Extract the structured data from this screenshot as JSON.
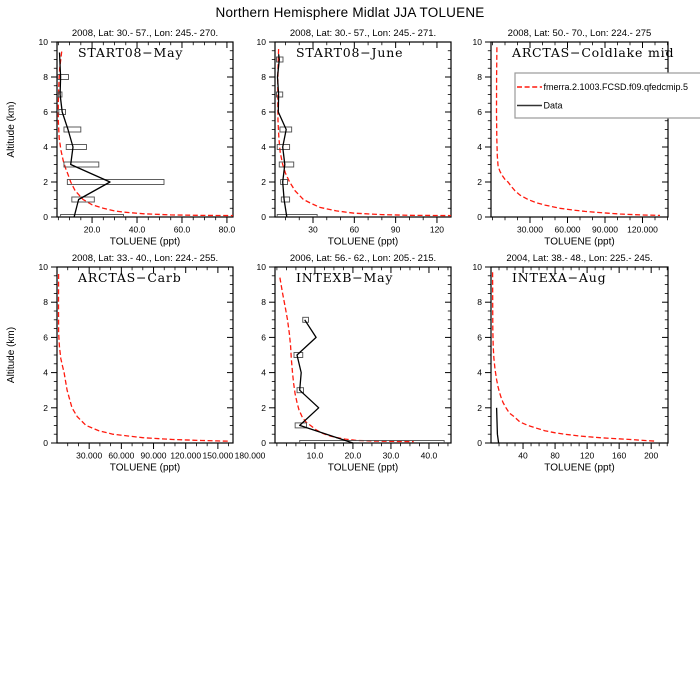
{
  "title": "Northern Hemisphere Midlat JJA TOLUENE",
  "colors": {
    "model": "#ff1a0e",
    "data": "#000000",
    "error_box": "#4d4d4d",
    "axis": "#000000",
    "legend_box": "#9a9a9a"
  },
  "legend": {
    "entries": [
      {
        "name": "model-line",
        "label": "fmerra.2.1003.FCSD.f09.qfedcmip.5",
        "color": "#ff1a0e",
        "dashed": true
      },
      {
        "name": "data-line",
        "label": "Data",
        "color": "#333333",
        "dashed": false
      }
    ]
  },
  "chart_data": [
    {
      "type": "line",
      "header": "2008, Lat: 30.- 57., Lon: 245.- 270.",
      "label": "START08−May",
      "xlabel": "TOLUENE (ppt)",
      "ylabel": "Altitude (km)",
      "xlim": [
        4.4,
        82.7
      ],
      "ylim": [
        0,
        10
      ],
      "x_ticks": {
        "values": [
          20,
          40,
          60,
          80
        ],
        "labels": [
          "20.0",
          "40.0",
          "60.0",
          "80.0"
        ],
        "minor_step": 5
      },
      "y_ticks": {
        "values": [
          0,
          2,
          4,
          6,
          8,
          10
        ],
        "labels": [
          "0",
          "2",
          "4",
          "6",
          "8",
          "10"
        ],
        "minor_step": 0.5
      },
      "model": [
        [
          6.5,
          9.45
        ],
        [
          5.6,
          8.5
        ],
        [
          5.2,
          7.5
        ],
        [
          5.0,
          6.5
        ],
        [
          5.0,
          5.5
        ],
        [
          5.4,
          4.5
        ],
        [
          6.2,
          3.8
        ],
        [
          7.2,
          3.2
        ],
        [
          8.2,
          2.8
        ],
        [
          9.4,
          2.4
        ],
        [
          10.5,
          2.0
        ],
        [
          12.5,
          1.5
        ],
        [
          16,
          1.0
        ],
        [
          20,
          0.7
        ],
        [
          25,
          0.5
        ],
        [
          30,
          0.35
        ],
        [
          34,
          0.28
        ],
        [
          43,
          0.18
        ],
        [
          55,
          0.12
        ],
        [
          70,
          0.09
        ],
        [
          83,
          0.08
        ]
      ],
      "data": [
        {
          "alt": 0,
          "v": 12,
          "lo": 6,
          "hi": 34
        },
        {
          "alt": 1,
          "v": 14,
          "lo": 11,
          "hi": 21
        },
        {
          "alt": 2,
          "v": 28,
          "lo": 9,
          "hi": 52
        },
        {
          "alt": 3,
          "v": 10.5,
          "lo": 7.5,
          "hi": 23
        },
        {
          "alt": 4,
          "v": 11.5,
          "lo": 8.5,
          "hi": 17.5
        },
        {
          "alt": 5,
          "v": 9.3,
          "lo": 7.5,
          "hi": 15
        },
        {
          "alt": 6,
          "v": 6.7,
          "lo": 5.2,
          "hi": 8.2
        },
        {
          "alt": 7,
          "v": 5.8,
          "lo": 5,
          "hi": 6.6
        },
        {
          "alt": 8,
          "v": 6,
          "lo": 4.7,
          "hi": 9.5
        },
        {
          "alt": 9.4,
          "v": 5.5
        }
      ]
    },
    {
      "type": "line",
      "header": "2008, Lat: 30.- 57., Lon: 245.- 271.",
      "label": "START08−June",
      "xlabel": "TOLUENE (ppt)",
      "ylabel": "",
      "xlim": [
        2.4,
        130.2
      ],
      "ylim": [
        0,
        10
      ],
      "x_ticks": {
        "values": [
          30,
          60,
          90,
          120
        ],
        "labels": [
          "30",
          "60",
          "90",
          "120"
        ],
        "minor_step": 10
      },
      "y_ticks": {
        "values": [
          0,
          2,
          4,
          6,
          8,
          10
        ],
        "labels": [
          "0",
          "2",
          "4",
          "6",
          "8",
          "10"
        ],
        "minor_step": 0.5
      },
      "model": [
        [
          5,
          9.6
        ],
        [
          4.6,
          8.5
        ],
        [
          4.4,
          7.5
        ],
        [
          4.4,
          6.5
        ],
        [
          4.6,
          5.5
        ],
        [
          5.2,
          4.5
        ],
        [
          6.2,
          3.7
        ],
        [
          8,
          3.0
        ],
        [
          10,
          2.5
        ],
        [
          13,
          2.0
        ],
        [
          17,
          1.5
        ],
        [
          23,
          1.0
        ],
        [
          28,
          0.8
        ],
        [
          35,
          0.55
        ],
        [
          47,
          0.35
        ],
        [
          60,
          0.22
        ],
        [
          80,
          0.14
        ],
        [
          100,
          0.1
        ],
        [
          131,
          0.08
        ]
      ],
      "data": [
        {
          "alt": 0,
          "v": 11,
          "lo": 4,
          "hi": 33
        },
        {
          "alt": 1,
          "v": 9,
          "lo": 7,
          "hi": 13
        },
        {
          "alt": 2,
          "v": 8,
          "lo": 6.5,
          "hi": 11.5
        },
        {
          "alt": 3,
          "v": 9.5,
          "lo": 5.5,
          "hi": 16
        },
        {
          "alt": 4,
          "v": 8,
          "lo": 4,
          "hi": 13
        },
        {
          "alt": 5,
          "v": 10.5,
          "lo": 6,
          "hi": 14.5
        },
        {
          "alt": 6,
          "v": 4.8
        },
        {
          "alt": 7,
          "v": 5,
          "lo": 3.5,
          "hi": 8
        },
        {
          "alt": 8,
          "v": 4.2
        },
        {
          "alt": 9,
          "v": 5.5,
          "lo": 3.5,
          "hi": 8.2
        },
        {
          "alt": 9.3,
          "v": 5
        }
      ]
    },
    {
      "type": "line",
      "header": "2008, Lat: 50.- 70., Lon: 224.- 275",
      "label": "ARCTAS−Coldlake mid",
      "xlabel": "TOLUENE (ppt)",
      "ylabel": "",
      "xlim": [
        -1.2,
        140.4
      ],
      "ylim": [
        0,
        10
      ],
      "x_ticks": {
        "values": [
          30,
          60,
          90,
          120
        ],
        "labels": [
          "30.000",
          "60.000",
          "90.000",
          "120.000"
        ],
        "minor_step": 10
      },
      "y_ticks": {
        "values": [
          0,
          2,
          4,
          6,
          8,
          10
        ],
        "labels": [
          "0",
          "2",
          "4",
          "6",
          "8",
          "10"
        ],
        "minor_step": 0.5
      },
      "has_legend": true,
      "model": [
        [
          3.5,
          9.7
        ],
        [
          3.3,
          8.0
        ],
        [
          3.2,
          6.0
        ],
        [
          3.4,
          4.5
        ],
        [
          3.8,
          3.5
        ],
        [
          4.5,
          2.9
        ],
        [
          6,
          2.6
        ],
        [
          8,
          2.35
        ],
        [
          10.5,
          2.1
        ],
        [
          12.4,
          2.0
        ],
        [
          15,
          1.75
        ],
        [
          18,
          1.5
        ],
        [
          22,
          1.25
        ],
        [
          28.4,
          1.0
        ],
        [
          35,
          0.82
        ],
        [
          42,
          0.68
        ],
        [
          54,
          0.5
        ],
        [
          64,
          0.4
        ],
        [
          74,
          0.32
        ],
        [
          88,
          0.24
        ],
        [
          102,
          0.17
        ],
        [
          118,
          0.12
        ],
        [
          134,
          0.09
        ]
      ],
      "data": []
    },
    {
      "type": "line",
      "header": "2008, Lat: 33.- 40., Lon: 224.- 255.",
      "label": "ARCTAS−Carb",
      "xlabel": "TOLUENE (ppt)",
      "ylabel": "Altitude (km)",
      "xlim": [
        0,
        164.1
      ],
      "ylim": [
        0,
        10
      ],
      "x_ticks": {
        "values": [
          30,
          60,
          90,
          120,
          150,
          180
        ],
        "labels": [
          "30.000",
          "60.000",
          "90.000",
          "120.000",
          "150.000",
          "180.000"
        ],
        "minor_step": 10
      },
      "y_ticks": {
        "values": [
          0,
          2,
          4,
          6,
          8,
          10
        ],
        "labels": [
          "0",
          "2",
          "4",
          "6",
          "8",
          "10"
        ],
        "minor_step": 0.5
      },
      "model": [
        [
          1.5,
          9.6
        ],
        [
          1.4,
          8.0
        ],
        [
          1.5,
          6.3
        ],
        [
          2.2,
          5.5
        ],
        [
          3.5,
          4.8
        ],
        [
          5,
          4.4
        ],
        [
          6.6,
          4.0
        ],
        [
          9.4,
          3.0
        ],
        [
          14,
          2.0
        ],
        [
          18.8,
          1.5
        ],
        [
          27,
          1.0
        ],
        [
          39,
          0.7
        ],
        [
          52,
          0.5
        ],
        [
          80,
          0.3
        ],
        [
          108,
          0.2
        ],
        [
          135,
          0.14
        ],
        [
          149,
          0.12
        ],
        [
          161,
          0.1
        ]
      ],
      "data": []
    },
    {
      "type": "line",
      "header": "2006, Lat: 56.- 62., Lon: 205.- 215.",
      "label": "INTEXB−May",
      "xlabel": "TOLUENE (ppt)",
      "ylabel": "",
      "xlim": [
        -0.5,
        45.8
      ],
      "ylim": [
        0,
        10
      ],
      "x_ticks": {
        "values": [
          10,
          20,
          30,
          40
        ],
        "labels": [
          "10.0",
          "20.0",
          "30.0",
          "40.0"
        ],
        "minor_step": 2.5
      },
      "y_ticks": {
        "values": [
          0,
          2,
          4,
          6,
          8,
          10
        ],
        "labels": [
          "0",
          "2",
          "4",
          "6",
          "8",
          "10"
        ],
        "minor_step": 0.5
      },
      "model": [
        [
          0.8,
          9.4
        ],
        [
          1.5,
          8.5
        ],
        [
          2.2,
          7.7
        ],
        [
          2.8,
          7.0
        ],
        [
          3.3,
          6.2
        ],
        [
          3.6,
          5.5
        ],
        [
          3.8,
          4.8
        ],
        [
          4.1,
          4.0
        ],
        [
          4.4,
          3.4
        ],
        [
          4.8,
          2.8
        ],
        [
          5.3,
          2.3
        ],
        [
          5.8,
          1.9
        ],
        [
          6.6,
          1.5
        ],
        [
          7.6,
          1.2
        ],
        [
          8.8,
          1.0
        ],
        [
          10.3,
          0.75
        ],
        [
          12,
          0.55
        ],
        [
          14,
          0.4
        ],
        [
          15.8,
          0.3
        ],
        [
          18,
          0.22
        ],
        [
          21,
          0.15
        ],
        [
          26,
          0.11
        ],
        [
          31,
          0.09
        ],
        [
          36,
          0.08
        ]
      ],
      "data": [
        {
          "alt": 0,
          "v": 20,
          "lo": 6,
          "hi": 44
        },
        {
          "alt": 1,
          "v": 6,
          "lo": 4.8,
          "hi": 7.8
        },
        {
          "alt": 2,
          "v": 11
        },
        {
          "alt": 3,
          "v": 6,
          "lo": 5.3,
          "hi": 7
        },
        {
          "alt": 4,
          "v": 6.4
        },
        {
          "alt": 5,
          "v": 5.3,
          "lo": 4.5,
          "hi": 6.8
        },
        {
          "alt": 6,
          "v": 10.3
        },
        {
          "alt": 7,
          "v": 7.3,
          "lo": 6.8,
          "hi": 8.3
        }
      ]
    },
    {
      "type": "line",
      "header": "2004, Lat: 38.- 48., Lon: 225.- 245.",
      "label": "INTEXA−Aug",
      "xlabel": "TOLUENE (ppt)",
      "ylabel": "",
      "xlim": [
        0,
        221
      ],
      "ylim": [
        0,
        10
      ],
      "x_ticks": {
        "values": [
          40,
          80,
          120,
          160,
          200
        ],
        "labels": [
          "40",
          "80",
          "120",
          "160",
          "200"
        ],
        "minor_step": 10
      },
      "y_ticks": {
        "values": [
          0,
          2,
          4,
          6,
          8,
          10
        ],
        "labels": [
          "0",
          "2",
          "4",
          "6",
          "8",
          "10"
        ],
        "minor_step": 0.5
      },
      "model": [
        [
          2,
          9.7
        ],
        [
          2.1,
          8.0
        ],
        [
          2.3,
          6.5
        ],
        [
          2.8,
          5.5
        ],
        [
          3.6,
          4.8
        ],
        [
          5,
          4.2
        ],
        [
          7,
          3.6
        ],
        [
          8.7,
          3.2
        ],
        [
          10.5,
          2.9
        ],
        [
          12.5,
          2.6
        ],
        [
          15,
          2.3
        ],
        [
          18.7,
          2.0
        ],
        [
          23,
          1.7
        ],
        [
          28.7,
          1.5
        ],
        [
          36,
          1.2
        ],
        [
          46,
          1.0
        ],
        [
          56,
          0.85
        ],
        [
          67,
          0.7
        ],
        [
          80,
          0.58
        ],
        [
          92,
          0.5
        ],
        [
          110,
          0.4
        ],
        [
          136,
          0.3
        ],
        [
          155,
          0.25
        ],
        [
          174,
          0.2
        ],
        [
          190,
          0.15
        ],
        [
          206,
          0.1
        ]
      ],
      "data": [
        {
          "alt": 0,
          "v": 9.5
        },
        {
          "alt": 0.5,
          "v": 8
        },
        {
          "alt": 2,
          "v": 7
        }
      ]
    }
  ]
}
